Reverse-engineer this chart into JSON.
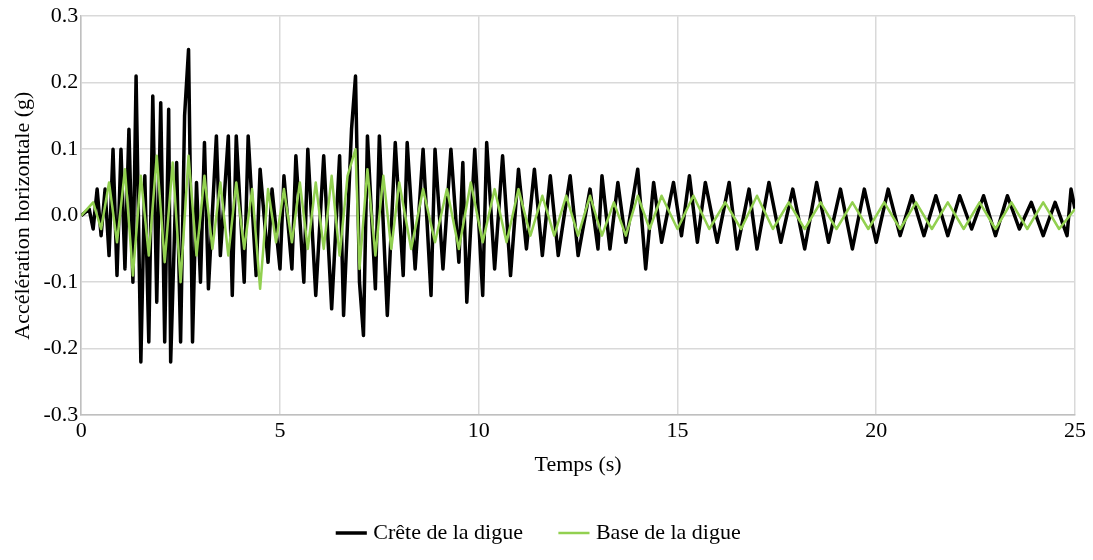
{
  "chart_data": {
    "type": "line",
    "xlabel": "Temps (s)",
    "ylabel": "Accélération horizontale (g)",
    "xlim": [
      0,
      25
    ],
    "xticks": [
      0,
      5,
      10,
      15,
      20,
      25
    ],
    "ylim": [
      -0.3,
      0.3
    ],
    "yticks": [
      -0.3,
      -0.2,
      -0.1,
      {
        "value": 0,
        "label": "0.0"
      },
      0.1,
      0.2,
      0.3
    ],
    "grid": true,
    "legend": "bottom",
    "marker": "none",
    "line_style": "solid",
    "series": [
      {
        "name": "Crête de la digue",
        "color": "#000000",
        "x": [
          0,
          0.2,
          0.3,
          0.4,
          0.5,
          0.6,
          0.7,
          0.8,
          0.9,
          1.0,
          1.1,
          1.2,
          1.3,
          1.38,
          1.5,
          1.6,
          1.7,
          1.8,
          1.9,
          2.0,
          2.1,
          2.2,
          2.25,
          2.4,
          2.5,
          2.6,
          2.7,
          2.8,
          2.9,
          3.0,
          3.1,
          3.2,
          3.4,
          3.5,
          3.7,
          3.8,
          3.9,
          4.1,
          4.2,
          4.4,
          4.5,
          4.7,
          4.8,
          5.0,
          5.1,
          5.3,
          5.4,
          5.6,
          5.7,
          5.9,
          6.1,
          6.3,
          6.5,
          6.6,
          6.8,
          6.9,
          7.0,
          7.1,
          7.2,
          7.4,
          7.5,
          7.7,
          7.9,
          8.1,
          8.2,
          8.4,
          8.6,
          8.8,
          8.9,
          9.1,
          9.3,
          9.5,
          9.6,
          9.7,
          9.9,
          10.1,
          10.2,
          10.4,
          10.6,
          10.8,
          11.0,
          11.2,
          11.4,
          11.6,
          11.8,
          12.0,
          12.3,
          12.5,
          12.8,
          13.0,
          13.1,
          13.3,
          13.5,
          13.7,
          14.0,
          14.2,
          14.4,
          14.6,
          14.9,
          15.1,
          15.3,
          15.5,
          15.7,
          16.0,
          16.3,
          16.5,
          16.8,
          17.0,
          17.3,
          17.6,
          17.9,
          18.2,
          18.5,
          18.8,
          19.1,
          19.4,
          19.7,
          20.0,
          20.3,
          20.6,
          20.9,
          21.2,
          21.5,
          21.8,
          22.1,
          22.4,
          22.7,
          23.0,
          23.3,
          23.6,
          23.9,
          24.2,
          24.5,
          24.8,
          24.9,
          25
        ],
        "values": [
          0,
          0.01,
          -0.02,
          0.04,
          -0.03,
          0.04,
          -0.06,
          0.1,
          -0.09,
          0.1,
          -0.08,
          0.13,
          -0.1,
          0.21,
          -0.22,
          0.06,
          -0.19,
          0.18,
          -0.13,
          0.17,
          -0.19,
          0.16,
          -0.22,
          0.08,
          -0.19,
          0.15,
          0.25,
          -0.19,
          0.05,
          -0.1,
          0.11,
          -0.11,
          0.12,
          -0.06,
          0.12,
          -0.12,
          0.12,
          -0.1,
          0.12,
          -0.09,
          0.07,
          -0.07,
          0.04,
          -0.08,
          0.06,
          -0.08,
          0.09,
          -0.1,
          0.1,
          -0.12,
          0.09,
          -0.14,
          0.09,
          -0.15,
          0.13,
          0.21,
          -0.1,
          -0.18,
          0.12,
          -0.11,
          0.12,
          -0.15,
          0.11,
          -0.09,
          0.11,
          -0.08,
          0.1,
          -0.12,
          0.1,
          -0.08,
          0.1,
          -0.07,
          0.08,
          -0.13,
          0.1,
          -0.12,
          0.11,
          -0.08,
          0.09,
          -0.09,
          0.07,
          -0.05,
          0.07,
          -0.06,
          0.06,
          -0.06,
          0.06,
          -0.06,
          0.04,
          -0.05,
          0.06,
          -0.05,
          0.05,
          -0.04,
          0.07,
          -0.08,
          0.05,
          -0.04,
          0.05,
          -0.03,
          0.06,
          -0.04,
          0.05,
          -0.04,
          0.05,
          -0.05,
          0.04,
          -0.05,
          0.05,
          -0.04,
          0.04,
          -0.05,
          0.05,
          -0.04,
          0.04,
          -0.05,
          0.04,
          -0.04,
          0.04,
          -0.03,
          0.03,
          -0.03,
          0.03,
          -0.03,
          0.03,
          -0.02,
          0.03,
          -0.03,
          0.03,
          -0.02,
          0.02,
          -0.03,
          0.02,
          -0.03,
          0.04,
          0.01
        ]
      },
      {
        "name": "Base de la digue",
        "color": "#92d050",
        "x": [
          0,
          0.3,
          0.5,
          0.7,
          0.9,
          1.1,
          1.3,
          1.5,
          1.7,
          1.9,
          2.1,
          2.3,
          2.5,
          2.7,
          2.9,
          3.1,
          3.3,
          3.5,
          3.7,
          3.9,
          4.1,
          4.3,
          4.5,
          4.7,
          4.9,
          5.1,
          5.3,
          5.5,
          5.7,
          5.9,
          6.1,
          6.3,
          6.5,
          6.7,
          6.9,
          7.0,
          7.2,
          7.4,
          7.6,
          7.8,
          8.0,
          8.3,
          8.6,
          8.9,
          9.2,
          9.5,
          9.8,
          10.1,
          10.4,
          10.7,
          11.0,
          11.3,
          11.6,
          11.9,
          12.2,
          12.5,
          12.8,
          13.1,
          13.4,
          13.7,
          14.0,
          14.3,
          14.6,
          15.0,
          15.4,
          15.8,
          16.2,
          16.6,
          17.0,
          17.4,
          17.8,
          18.2,
          18.6,
          19.0,
          19.4,
          19.8,
          20.2,
          20.6,
          21.0,
          21.4,
          21.8,
          22.2,
          22.6,
          23.0,
          23.4,
          23.8,
          24.2,
          24.6,
          25
        ],
        "values": [
          0,
          0.02,
          -0.02,
          0.05,
          -0.04,
          0.07,
          -0.09,
          0.06,
          -0.06,
          0.09,
          -0.07,
          0.08,
          -0.1,
          0.09,
          -0.06,
          0.06,
          -0.05,
          0.05,
          -0.06,
          0.05,
          -0.05,
          0.04,
          -0.11,
          0.04,
          -0.04,
          0.04,
          -0.04,
          0.05,
          -0.05,
          0.05,
          -0.05,
          0.06,
          -0.06,
          0.06,
          0.1,
          -0.08,
          0.07,
          -0.06,
          0.06,
          -0.05,
          0.05,
          -0.05,
          0.04,
          -0.04,
          0.04,
          -0.05,
          0.05,
          -0.04,
          0.04,
          -0.04,
          0.04,
          -0.03,
          0.03,
          -0.03,
          0.03,
          -0.03,
          0.03,
          -0.03,
          0.02,
          -0.03,
          0.03,
          -0.02,
          0.03,
          -0.02,
          0.03,
          -0.02,
          0.02,
          -0.02,
          0.03,
          -0.02,
          0.02,
          -0.02,
          0.02,
          -0.02,
          0.02,
          -0.02,
          0.02,
          -0.02,
          0.02,
          -0.02,
          0.02,
          -0.02,
          0.02,
          -0.02,
          0.02,
          -0.02,
          0.02,
          -0.02,
          0.01
        ]
      }
    ]
  }
}
